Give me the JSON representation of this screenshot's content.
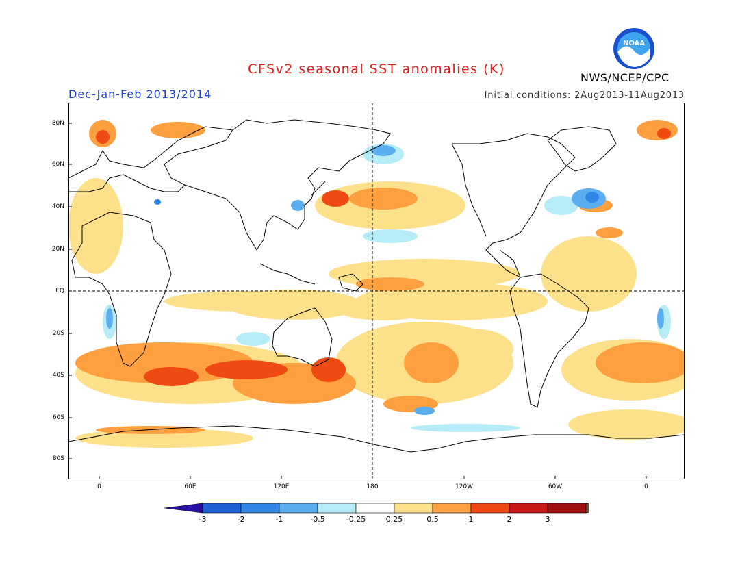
{
  "header": {
    "title": "CFSv2 seasonal SST anomalies (K)",
    "season": "Dec-Jan-Feb 2013/2014",
    "initial_conditions": "Initial conditions: 2Aug2013-11Aug2013",
    "agency": "NWS/NCEP/CPC",
    "logo_text": "NOAA"
  },
  "map": {
    "lat_labels": [
      "80N",
      "60N",
      "40N",
      "20N",
      "EQ",
      "20S",
      "40S",
      "60S",
      "80S"
    ],
    "lon_labels": [
      "0",
      "60E",
      "120E",
      "180",
      "120W",
      "60W",
      "0"
    ],
    "reference_lines": [
      "EQ",
      "180"
    ]
  },
  "colorbar": {
    "labels": [
      "-3",
      "-2",
      "-1",
      "-0.5",
      "-0.25",
      "0.25",
      "0.5",
      "1",
      "2",
      "3"
    ],
    "colors": [
      "#2a0fa6",
      "#1f5fd6",
      "#2f86e6",
      "#5aaef0",
      "#b6ecf6",
      "#ffffff",
      "#fde08a",
      "#ffa040",
      "#ee4a12",
      "#c81818",
      "#a01010",
      "#7a4a3a"
    ]
  }
}
